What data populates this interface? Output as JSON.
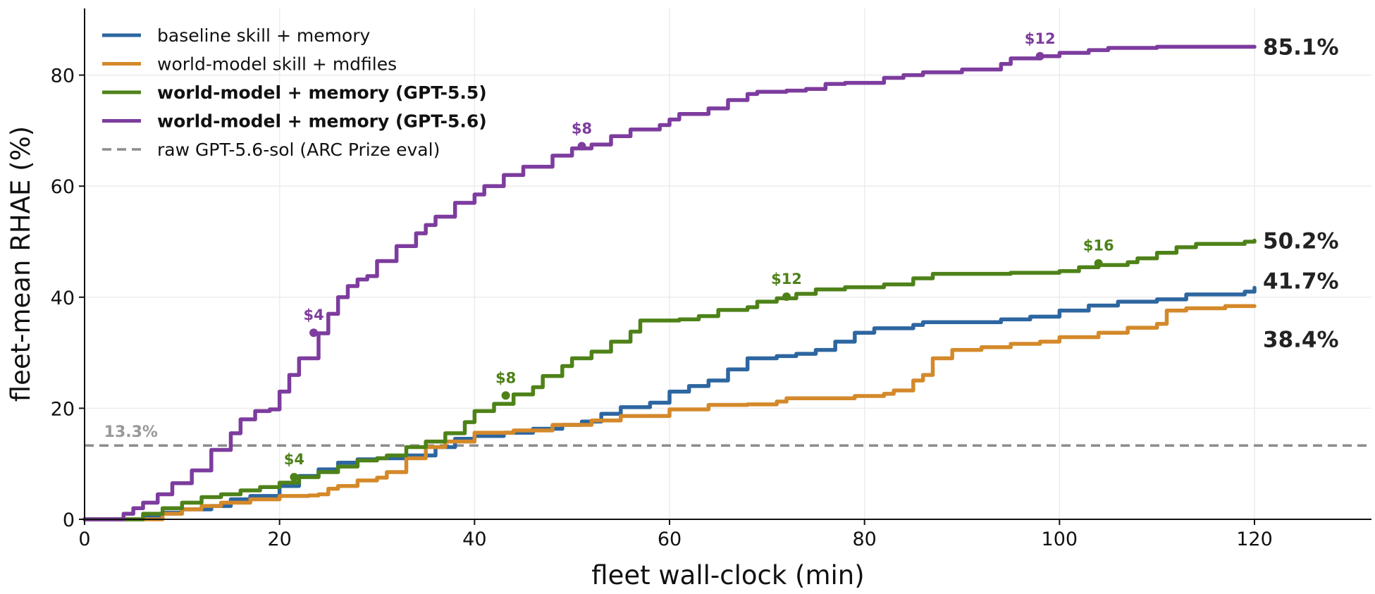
{
  "chart_data": {
    "type": "line",
    "title": "",
    "xlabel": "fleet wall-clock (min)",
    "ylabel": "fleet-mean RHAE (%)",
    "xlim": [
      0,
      132
    ],
    "ylim": [
      0,
      92
    ],
    "xticks": [
      0,
      20,
      40,
      60,
      80,
      100,
      120
    ],
    "yticks": [
      0,
      20,
      40,
      60,
      80
    ],
    "grid": true,
    "legend_position": "top-left",
    "series": [
      {
        "name": "baseline skill + memory",
        "color": "#2d66a0",
        "bold": false,
        "end_label": "41.7%",
        "points": [
          [
            0,
            0
          ],
          [
            4,
            0
          ],
          [
            6,
            0.6
          ],
          [
            8,
            1.2
          ],
          [
            10,
            1.8
          ],
          [
            13,
            2.4
          ],
          [
            15,
            3.6
          ],
          [
            17,
            4.2
          ],
          [
            20,
            6
          ],
          [
            22,
            7.8
          ],
          [
            24,
            9
          ],
          [
            26,
            10.2
          ],
          [
            28,
            10.8
          ],
          [
            30,
            11
          ],
          [
            33,
            11.5
          ],
          [
            36,
            13
          ],
          [
            38,
            14.5
          ],
          [
            40,
            15
          ],
          [
            43,
            15.6
          ],
          [
            46,
            16.3
          ],
          [
            49,
            17
          ],
          [
            51,
            17.6
          ],
          [
            53,
            19
          ],
          [
            55,
            20.2
          ],
          [
            58,
            21
          ],
          [
            60,
            23
          ],
          [
            62,
            24
          ],
          [
            64,
            25
          ],
          [
            66,
            27
          ],
          [
            68,
            29
          ],
          [
            71,
            29.4
          ],
          [
            73,
            29.8
          ],
          [
            75,
            30.5
          ],
          [
            77,
            32
          ],
          [
            79,
            33.6
          ],
          [
            81,
            34.4
          ],
          [
            85,
            35
          ],
          [
            86,
            35.5
          ],
          [
            94,
            36
          ],
          [
            97,
            36.5
          ],
          [
            100,
            37.6
          ],
          [
            103,
            38.5
          ],
          [
            106,
            39.2
          ],
          [
            110,
            39.6
          ],
          [
            113,
            40.5
          ],
          [
            119,
            41
          ],
          [
            120,
            41.7
          ]
        ],
        "cost_markers": []
      },
      {
        "name": "world-model skill + mdfiles",
        "color": "#d4892a",
        "bold": false,
        "end_label": "38.4%",
        "points": [
          [
            0,
            0
          ],
          [
            5,
            0
          ],
          [
            8,
            1
          ],
          [
            10,
            1.8
          ],
          [
            12,
            2.4
          ],
          [
            14,
            3
          ],
          [
            17,
            3.6
          ],
          [
            20,
            4.2
          ],
          [
            23,
            4.3
          ],
          [
            24,
            4.5
          ],
          [
            25,
            5.5
          ],
          [
            26,
            6
          ],
          [
            28,
            7
          ],
          [
            30,
            7.5
          ],
          [
            31,
            8.5
          ],
          [
            33,
            11
          ],
          [
            35,
            13
          ],
          [
            37,
            14
          ],
          [
            40,
            15.6
          ],
          [
            44,
            16
          ],
          [
            48,
            17
          ],
          [
            52,
            17.8
          ],
          [
            55,
            18.6
          ],
          [
            60,
            19.8
          ],
          [
            64,
            20.6
          ],
          [
            68,
            20.7
          ],
          [
            71,
            21.2
          ],
          [
            72,
            21.8
          ],
          [
            79,
            22.2
          ],
          [
            82,
            22.6
          ],
          [
            83,
            23.2
          ],
          [
            85,
            25
          ],
          [
            86,
            26
          ],
          [
            87,
            29
          ],
          [
            89,
            30.5
          ],
          [
            92,
            31
          ],
          [
            95,
            31.6
          ],
          [
            98,
            32
          ],
          [
            100,
            32.8
          ],
          [
            104,
            33.6
          ],
          [
            107,
            34.5
          ],
          [
            110,
            35.2
          ],
          [
            111,
            37.6
          ],
          [
            113,
            38
          ],
          [
            117,
            38.4
          ],
          [
            120,
            38.4
          ]
        ],
        "cost_markers": []
      },
      {
        "name": "world-model + memory (GPT-5.5)",
        "color": "#4e8219",
        "bold": true,
        "end_label": "50.2%",
        "points": [
          [
            0,
            0
          ],
          [
            4,
            0
          ],
          [
            6,
            1
          ],
          [
            8,
            2
          ],
          [
            10,
            3
          ],
          [
            12,
            4
          ],
          [
            14,
            4.5
          ],
          [
            16,
            5.2
          ],
          [
            18,
            5.8
          ],
          [
            20,
            6.6
          ],
          [
            22,
            7.6
          ],
          [
            24,
            8.5
          ],
          [
            26,
            9.5
          ],
          [
            28,
            10.6
          ],
          [
            30,
            11
          ],
          [
            31,
            11.5
          ],
          [
            33,
            13
          ],
          [
            35,
            14
          ],
          [
            37,
            15.5
          ],
          [
            39,
            17.5
          ],
          [
            40,
            19.5
          ],
          [
            42,
            20.8
          ],
          [
            44,
            22.5
          ],
          [
            46,
            23.8
          ],
          [
            47,
            25.8
          ],
          [
            49,
            27.6
          ],
          [
            50,
            29
          ],
          [
            52,
            30.2
          ],
          [
            54,
            32
          ],
          [
            56,
            33.8
          ],
          [
            57,
            35.8
          ],
          [
            61,
            36
          ],
          [
            63,
            36.6
          ],
          [
            65,
            37.7
          ],
          [
            68,
            38.2
          ],
          [
            69,
            39.2
          ],
          [
            71,
            39.8
          ],
          [
            73,
            40.6
          ],
          [
            75,
            41.4
          ],
          [
            78,
            41.8
          ],
          [
            82,
            42.3
          ],
          [
            85,
            43.4
          ],
          [
            87,
            44.2
          ],
          [
            95,
            44.4
          ],
          [
            100,
            44.7
          ],
          [
            102,
            45.4
          ],
          [
            104,
            45.8
          ],
          [
            107,
            46.3
          ],
          [
            108,
            47
          ],
          [
            110,
            48
          ],
          [
            112,
            49
          ],
          [
            114,
            49.6
          ],
          [
            119,
            50
          ],
          [
            120,
            50.2
          ]
        ],
        "cost_markers": [
          {
            "x": 21.5,
            "y": 7.6,
            "label": "$4"
          },
          {
            "x": 43.2,
            "y": 22.3,
            "label": "$8"
          },
          {
            "x": 72,
            "y": 40.1,
            "label": "$12"
          },
          {
            "x": 104,
            "y": 46.1,
            "label": "$16"
          }
        ]
      },
      {
        "name": "world-model + memory (GPT-5.6)",
        "color": "#7d3c9e",
        "bold": true,
        "end_label": "85.1%",
        "points": [
          [
            0,
            0
          ],
          [
            2.5,
            0
          ],
          [
            4,
            1
          ],
          [
            5,
            2
          ],
          [
            6,
            3
          ],
          [
            7.5,
            4.5
          ],
          [
            9,
            6.5
          ],
          [
            11,
            8.8
          ],
          [
            13,
            12.5
          ],
          [
            15,
            15.5
          ],
          [
            16,
            18
          ],
          [
            17.5,
            19.5
          ],
          [
            19,
            19.8
          ],
          [
            20,
            23
          ],
          [
            21,
            26
          ],
          [
            22,
            29
          ],
          [
            24,
            33.5
          ],
          [
            25,
            37
          ],
          [
            26,
            40
          ],
          [
            27,
            42
          ],
          [
            28,
            43.2
          ],
          [
            29,
            43.8
          ],
          [
            30,
            46.5
          ],
          [
            32,
            49.2
          ],
          [
            34,
            51.5
          ],
          [
            35,
            53
          ],
          [
            36,
            54.5
          ],
          [
            38,
            57
          ],
          [
            40,
            58.5
          ],
          [
            41,
            60
          ],
          [
            43,
            62
          ],
          [
            45,
            63.5
          ],
          [
            48,
            65.5
          ],
          [
            50,
            66.8
          ],
          [
            52,
            67.5
          ],
          [
            54,
            69
          ],
          [
            56,
            70.2
          ],
          [
            59,
            71
          ],
          [
            60,
            72
          ],
          [
            61,
            73
          ],
          [
            64,
            74
          ],
          [
            66,
            75.5
          ],
          [
            68,
            76.6
          ],
          [
            69,
            77
          ],
          [
            72,
            77.2
          ],
          [
            74,
            77.5
          ],
          [
            76,
            78.4
          ],
          [
            78,
            78.6
          ],
          [
            82,
            79.5
          ],
          [
            84,
            80
          ],
          [
            86,
            80.5
          ],
          [
            90,
            81
          ],
          [
            94,
            82
          ],
          [
            95,
            83
          ],
          [
            98,
            83.4
          ],
          [
            100,
            84
          ],
          [
            103,
            84.5
          ],
          [
            105,
            84.9
          ],
          [
            110,
            85.1
          ],
          [
            120,
            85.1
          ]
        ],
        "cost_markers": [
          {
            "x": 23.5,
            "y": 33.6,
            "label": "$4"
          },
          {
            "x": 51,
            "y": 67.2,
            "label": "$8"
          },
          {
            "x": 98,
            "y": 83.4,
            "label": "$12"
          }
        ]
      }
    ],
    "reference_line": {
      "name": "raw GPT-5.6-sol (ARC Prize eval)",
      "value": 13.3,
      "label": "13.3%",
      "color": "#8c8c8c",
      "style": "dashed"
    }
  }
}
